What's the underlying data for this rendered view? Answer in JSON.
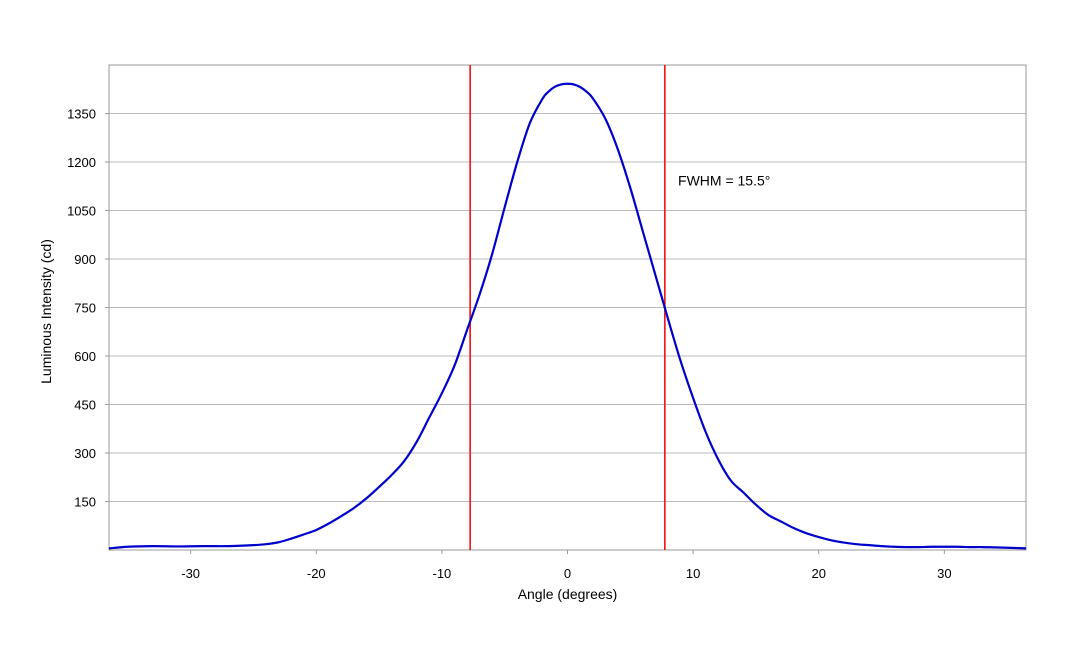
{
  "chart_data": {
    "type": "line",
    "title": "",
    "xlabel": "Angle (degrees)",
    "ylabel": "Luminous Intensity (cd)",
    "xlim": [
      -36.5,
      36.5
    ],
    "ylim": [
      0,
      1500
    ],
    "x_ticks": [
      -30,
      -20,
      -10,
      0,
      10,
      20,
      30
    ],
    "x_tick_labels": [
      "-30",
      "-20",
      "-10",
      "0",
      "10",
      "20",
      "30"
    ],
    "y_ticks": [
      150,
      300,
      450,
      600,
      750,
      900,
      1050,
      1200,
      1350
    ],
    "y_tick_labels": [
      "150",
      "300",
      "450",
      "600",
      "750",
      "900",
      "1050",
      "1200",
      "1350"
    ],
    "grid": "horizontal",
    "series": [
      {
        "color": "#0000cc",
        "x": [
          -36.5,
          -35,
          -33,
          -31,
          -29,
          -27,
          -25,
          -24,
          -23,
          -22,
          -21,
          -20,
          -19,
          -18,
          -17,
          -16,
          -15,
          -14,
          -13,
          -12,
          -11,
          -10,
          -9,
          -8,
          -7,
          -6,
          -5,
          -4,
          -3,
          -2,
          -1.5,
          -1,
          -0.5,
          0,
          0.5,
          1,
          1.5,
          2,
          3,
          4,
          5,
          6,
          7,
          8,
          9,
          10,
          11,
          12,
          13,
          14,
          15,
          16,
          17,
          18,
          19,
          20,
          21,
          22,
          23,
          24,
          25,
          26,
          27,
          28,
          29,
          30,
          31,
          32,
          33,
          34,
          35,
          36.5
        ],
        "y": [
          5,
          10,
          12,
          11,
          12,
          12,
          15,
          18,
          24,
          35,
          48,
          62,
          82,
          105,
          130,
          160,
          195,
          232,
          275,
          335,
          410,
          485,
          570,
          680,
          790,
          915,
          1060,
          1200,
          1320,
          1395,
          1418,
          1433,
          1440,
          1442,
          1440,
          1432,
          1418,
          1398,
          1335,
          1240,
          1120,
          985,
          850,
          715,
          585,
          470,
          365,
          280,
          215,
          178,
          140,
          108,
          88,
          68,
          52,
          40,
          30,
          23,
          18,
          15,
          12,
          10,
          9,
          9,
          10,
          10,
          10,
          9,
          9,
          8,
          7,
          5
        ]
      }
    ],
    "vlines": [
      {
        "x": -7.75,
        "color": "#ee1111"
      },
      {
        "x": 7.75,
        "color": "#ee1111"
      }
    ],
    "annotations": [
      {
        "text": "FWHM = 15.5°",
        "x": 8.8,
        "y": 1128
      }
    ],
    "colors": {
      "line": "#0000cc",
      "fwhm_lines": "#ee1111",
      "grid": "#bbbbbb",
      "frame": "#999999"
    }
  }
}
